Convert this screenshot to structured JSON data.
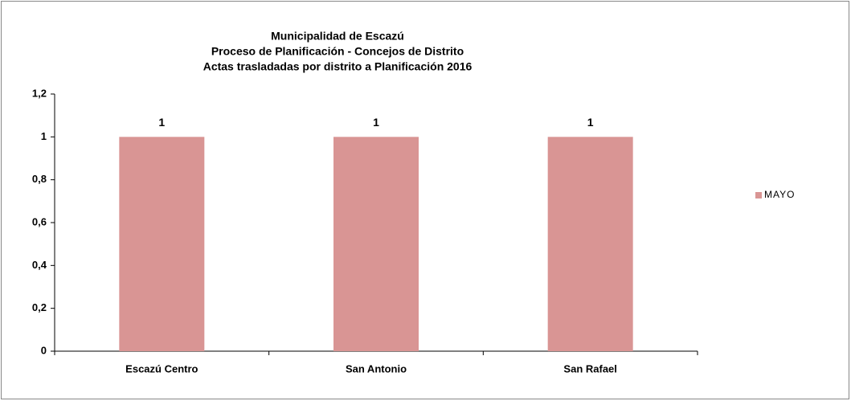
{
  "chart_data": {
    "type": "bar",
    "title": [
      "Municipalidad de Escazú",
      "Proceso de Planificación - Concejos de Distrito",
      "Actas trasladadas por distrito a Planificación  2016"
    ],
    "categories": [
      "Escazú Centro",
      "San Antonio",
      "San Rafael"
    ],
    "series": [
      {
        "name": "MAYO",
        "color": "#d99594",
        "values": [
          1,
          1,
          1
        ]
      }
    ],
    "ylim": [
      0,
      1.2
    ],
    "yticks": [
      0,
      {
        "value": 0.2,
        "label": "0,2"
      },
      {
        "value": 0.4,
        "label": "0,4"
      },
      {
        "value": 0.6,
        "label": "0,6"
      },
      {
        "value": 0.8,
        "label": "0,8"
      },
      1,
      {
        "value": 1.2,
        "label": "1,2"
      }
    ],
    "grid": false,
    "legend": "right"
  }
}
